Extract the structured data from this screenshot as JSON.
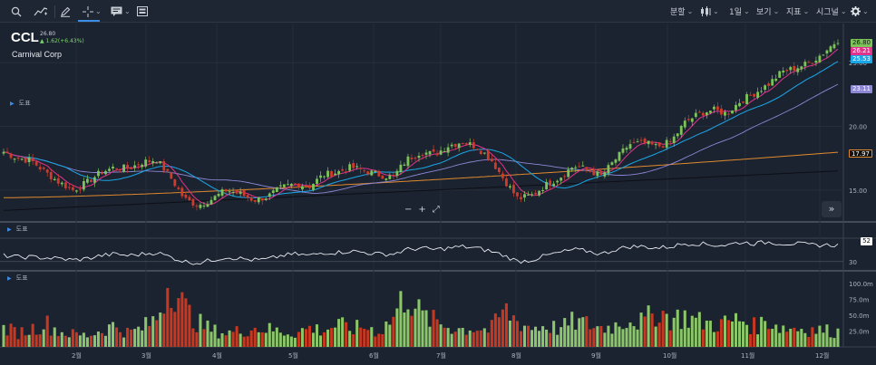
{
  "toolbar": {
    "right_items": [
      {
        "label": "분할"
      },
      {
        "label": ""
      },
      {
        "label": "1일"
      },
      {
        "label": "보기"
      },
      {
        "label": "지표"
      },
      {
        "label": "시그널"
      },
      {
        "label": ""
      }
    ]
  },
  "header": {
    "symbol": "CCL",
    "price": "26.80",
    "change": "1.62(+6.43%)",
    "company": "Carnival Corp"
  },
  "panes": {
    "main_label": "도표",
    "osc_label": "도표",
    "volume_label": "도표"
  },
  "price_axis": {
    "ticks": [
      "25.00",
      "20.00",
      "15.00"
    ],
    "badges": [
      {
        "value": "26.80",
        "color": "#7cc45a"
      },
      {
        "value": "26.21",
        "color": "#e0338b"
      },
      {
        "value": "25.53",
        "color": "#1aa7e8"
      },
      {
        "value": "23.11",
        "color": "#8d87d6"
      },
      {
        "value": "17.97",
        "color": "#1a1a1a"
      }
    ]
  },
  "osc_axis": {
    "value": "52",
    "tick": "30"
  },
  "volume_axis": {
    "ticks": [
      "100.0m",
      "75.0m",
      "50.0m",
      "25.0m"
    ]
  },
  "time_axis": {
    "months": [
      "2월",
      "3월",
      "4월",
      "5월",
      "6월",
      "7월",
      "8월",
      "9월",
      "10월",
      "11월",
      "12월"
    ]
  },
  "zoom_controls": {
    "minus": "−",
    "plus": "+",
    "fit": "⤢"
  },
  "expand_label": "»",
  "colors": {
    "up": "#7cc45a",
    "down": "#d23a2a",
    "ma_short": "#e0338b",
    "ma_mid": "#1aa7e8",
    "ma_long": "#8d87d6",
    "ma_200": "#e08a2e"
  },
  "chart_data": {
    "type": "candlestick",
    "title": "",
    "x_labels": [
      "2월",
      "3월",
      "4월",
      "5월",
      "6월",
      "7월",
      "8월",
      "9월",
      "10월",
      "11월",
      "12월"
    ],
    "ylim": [
      12.5,
      28
    ],
    "y_ticks": [
      15,
      20,
      25
    ],
    "close_path": [
      18.0,
      17.5,
      17.3,
      16.4,
      15.6,
      15.0,
      15.6,
      16.4,
      16.8,
      16.7,
      17.2,
      17.4,
      16.0,
      14.3,
      13.8,
      14.3,
      15.0,
      14.7,
      14.2,
      14.5,
      15.2,
      15.5,
      15.3,
      16.2,
      16.4,
      16.8,
      16.5,
      16.2,
      16.0,
      17.4,
      18.0,
      17.8,
      18.5,
      18.8,
      18.4,
      17.5,
      15.8,
      14.3,
      14.6,
      15.4,
      16.0,
      16.9,
      16.6,
      16.1,
      17.4,
      18.6,
      18.7,
      18.4,
      18.8,
      20.3,
      21.0,
      21.3,
      21.0,
      22.0,
      22.6,
      23.3,
      24.3,
      24.6,
      25.0,
      25.8,
      26.8
    ],
    "volume": [
      30,
      22,
      28,
      38,
      24,
      20,
      18,
      26,
      34,
      22,
      30,
      45,
      112,
      60,
      38,
      26,
      22,
      25,
      30,
      28,
      24,
      22,
      30,
      26,
      35,
      28,
      32,
      24,
      45,
      88,
      50,
      40,
      32,
      28,
      30,
      26,
      58,
      40,
      30,
      34,
      28,
      40,
      36,
      30,
      34,
      46,
      38,
      58,
      44,
      48,
      40,
      36,
      38,
      44,
      32,
      42,
      30,
      30,
      28,
      26,
      24
    ],
    "oscillator": [
      38,
      36,
      36,
      35,
      34,
      32,
      34,
      38,
      40,
      38,
      40,
      42,
      36,
      30,
      28,
      32,
      36,
      34,
      32,
      33,
      38,
      40,
      38,
      42,
      42,
      44,
      42,
      40,
      40,
      46,
      48,
      46,
      48,
      50,
      48,
      44,
      38,
      30,
      32,
      38,
      42,
      46,
      44,
      40,
      46,
      50,
      50,
      48,
      50,
      54,
      54,
      52,
      52,
      56,
      54,
      56,
      54,
      54,
      52,
      52,
      52
    ],
    "series": [
      {
        "name": "",
        "values": [
          26.21
        ]
      },
      {
        "name": "",
        "values": [
          25.53
        ]
      },
      {
        "name": "",
        "values": [
          23.11
        ]
      },
      {
        "name": "",
        "values": [
          17.97
        ]
      }
    ]
  }
}
